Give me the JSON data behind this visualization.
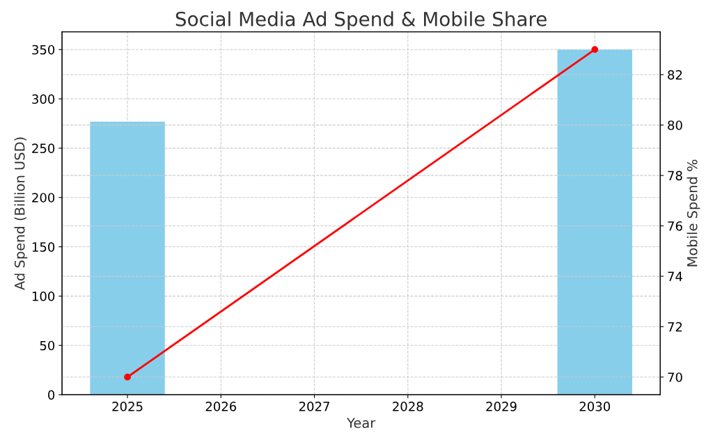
{
  "chart_data": {
    "type": "bar",
    "title": "Social Media Ad Spend & Mobile Share",
    "xlabel": "Year",
    "ylabel": "Ad Spend (Billion USD)",
    "y2label": "Mobile Spend %",
    "x": [
      2025,
      2030
    ],
    "series": [
      {
        "color": "#87ceeb",
        "values": [
          277,
          350
        ]
      },
      {
        "type": "line",
        "axis": "y2",
        "color": "#ff0000",
        "values": [
          70,
          83
        ],
        "marker": "circle",
        "line_style": "solid"
      }
    ],
    "xlim": [
      2024.3,
      2030.7
    ],
    "xticks": [
      2025,
      2026,
      2027,
      2028,
      2029,
      2030
    ],
    "ylim": [
      0,
      368
    ],
    "yticks": [
      0,
      50,
      100,
      150,
      200,
      250,
      300,
      350
    ],
    "y2lim": [
      69.3,
      83.7
    ],
    "y2ticks": [
      70,
      72,
      74,
      76,
      78,
      80,
      82
    ],
    "grid": true
  }
}
